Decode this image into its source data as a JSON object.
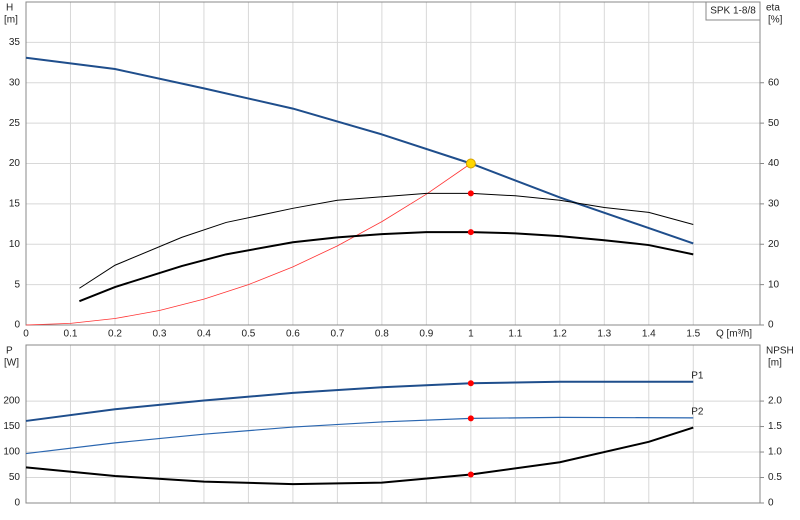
{
  "chart_data": [
    {
      "type": "line",
      "title": "SPK 1-8/8",
      "y_label": "H",
      "y_unit": "[m]",
      "y2_label": "eta",
      "y2_unit": "[%]",
      "x_label": "Q [m³/h]",
      "xlim": [
        0,
        1.65
      ],
      "xticks": [
        0,
        0.1,
        0.2,
        0.3,
        0.4,
        0.5,
        0.6,
        0.7,
        0.8,
        0.9,
        1.0,
        1.1,
        1.2,
        1.3,
        1.4,
        1.5
      ],
      "ylim": [
        0,
        40
      ],
      "yticks": [
        0,
        5,
        10,
        15,
        20,
        25,
        30,
        35
      ],
      "y2lim": [
        0,
        80
      ],
      "y2ticks": [
        0,
        10,
        20,
        30,
        40,
        50,
        60
      ],
      "grid": true,
      "series": [
        {
          "color": "#1f4e8c",
          "width": 2,
          "x": [
            0,
            0.2,
            0.4,
            0.6,
            0.8,
            1.0,
            1.2,
            1.4,
            1.5
          ],
          "values": [
            33.1,
            31.7,
            29.3,
            26.8,
            23.6,
            20.0,
            15.8,
            12.0,
            10.1
          ]
        },
        {
          "color": "#ff3333",
          "width": 0.8,
          "x": [
            0,
            0.1,
            0.2,
            0.3,
            0.4,
            0.5,
            0.6,
            0.7,
            0.8,
            0.9,
            1.0
          ],
          "values": [
            0,
            0.2,
            0.8,
            1.8,
            3.2,
            5.0,
            7.2,
            9.8,
            12.8,
            16.2,
            20.0
          ]
        },
        {
          "color": "#000000",
          "width": 1,
          "axis": "y2",
          "x": [
            0.12,
            0.2,
            0.35,
            0.45,
            0.6,
            0.7,
            0.9,
            1.0,
            1.1,
            1.2,
            1.3,
            1.4,
            1.5
          ],
          "values": [
            9.1,
            14.8,
            21.7,
            25.4,
            28.9,
            30.9,
            32.6,
            32.6,
            32.0,
            30.9,
            29.1,
            27.9,
            24.9
          ]
        },
        {
          "color": "#000000",
          "width": 2,
          "axis": "y2",
          "x": [
            0.12,
            0.2,
            0.35,
            0.45,
            0.6,
            0.7,
            0.8,
            0.9,
            1.0,
            1.1,
            1.2,
            1.3,
            1.4,
            1.5
          ],
          "values": [
            5.9,
            9.4,
            14.6,
            17.5,
            20.5,
            21.7,
            22.5,
            23.0,
            23.0,
            22.7,
            22.0,
            21.0,
            19.8,
            17.5
          ]
        }
      ],
      "markers": [
        {
          "x": 1.0,
          "y": 20.0,
          "color": "#ffd700"
        },
        {
          "x": 1.0,
          "y": 32.6,
          "color": "#ff0000",
          "axis": "y2"
        },
        {
          "x": 1.0,
          "y": 23.0,
          "color": "#ff0000",
          "axis": "y2"
        }
      ]
    },
    {
      "type": "line",
      "y_label": "P",
      "y_unit": "[W]",
      "y2_label": "NPSH",
      "y2_unit": "[m]",
      "xlim": [
        0,
        1.65
      ],
      "xticks": [
        0,
        0.1,
        0.2,
        0.3,
        0.4,
        0.5,
        0.6,
        0.7,
        0.8,
        0.9,
        1.0,
        1.1,
        1.2,
        1.3,
        1.4,
        1.5
      ],
      "ylim": [
        0,
        310
      ],
      "yticks": [
        0,
        50,
        100,
        150,
        200
      ],
      "y2lim": [
        0,
        3.1
      ],
      "y2ticks": [
        0,
        0.5,
        {
          "value": 1,
          "label": "1.0"
        },
        1.5,
        {
          "value": 2,
          "label": "2.0"
        }
      ],
      "grid": true,
      "series": [
        {
          "name": "P1",
          "color": "#1f4e8c",
          "width": 2,
          "x": [
            0,
            0.2,
            0.4,
            0.6,
            0.8,
            1.0,
            1.2,
            1.5
          ],
          "values": [
            161,
            184,
            201,
            216,
            227,
            235,
            238,
            238
          ]
        },
        {
          "name": "P2",
          "color": "#2a66b0",
          "width": 1.2,
          "x": [
            0,
            0.2,
            0.4,
            0.6,
            0.8,
            1.0,
            1.2,
            1.5
          ],
          "values": [
            97,
            118,
            135,
            149,
            159,
            166,
            168,
            167
          ]
        },
        {
          "color": "#000000",
          "width": 2,
          "axis": "y2",
          "x": [
            0,
            0.2,
            0.4,
            0.6,
            0.8,
            1.0,
            1.2,
            1.4,
            1.5
          ],
          "values": [
            0.7,
            0.53,
            0.42,
            0.37,
            0.4,
            0.56,
            0.8,
            1.2,
            1.48
          ]
        }
      ],
      "markers": [
        {
          "x": 1.0,
          "y": 235,
          "color": "#ff0000"
        },
        {
          "x": 1.0,
          "y": 166,
          "color": "#ff0000"
        },
        {
          "x": 1.0,
          "y": 0.56,
          "color": "#ff0000",
          "axis": "y2"
        }
      ]
    }
  ]
}
